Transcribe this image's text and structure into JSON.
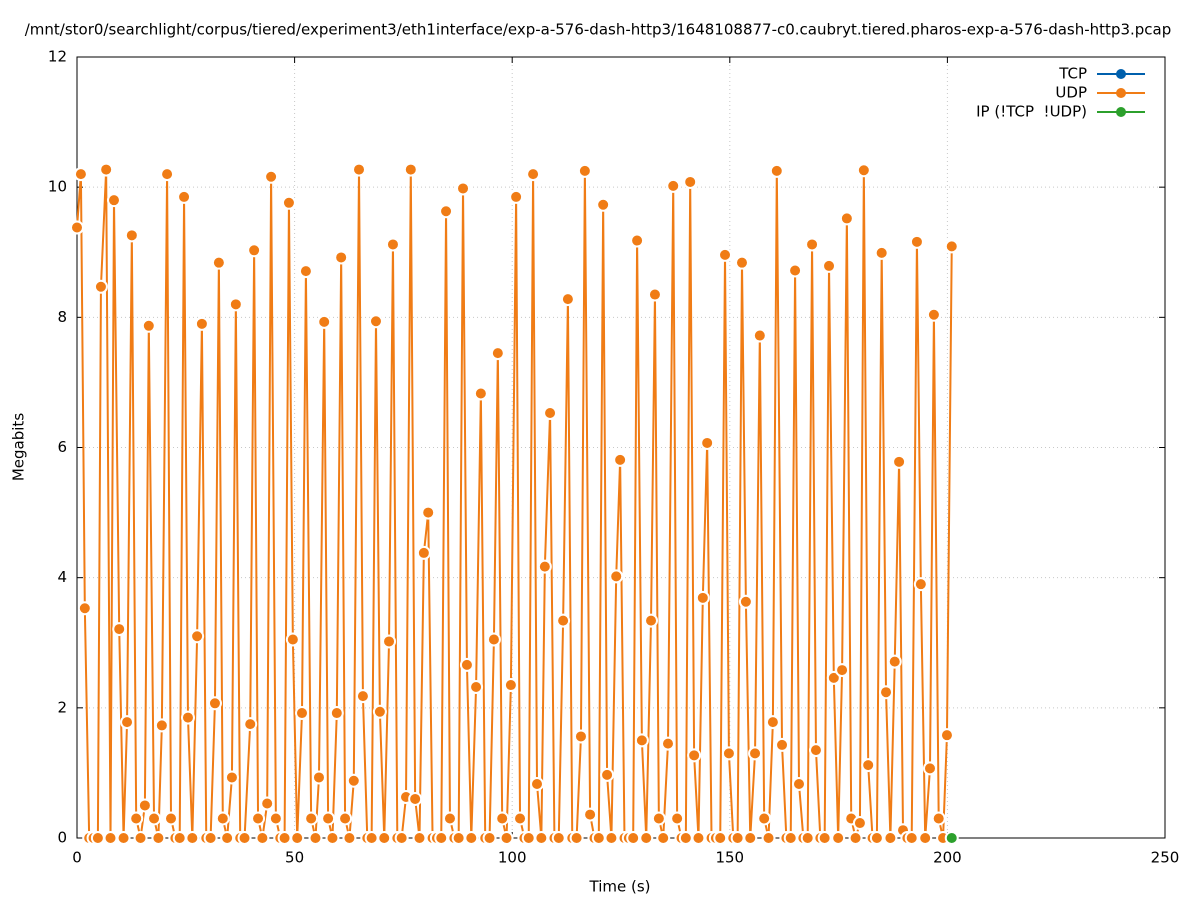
{
  "chart_data": {
    "type": "line",
    "title": "/mnt/stor0/searchlight/corpus/tiered/experiment3/eth1interface/exp-a-576-dash-http3/1648108877-c0.caubryt.tiered.pharos-exp-a-576-dash-http3.pcap",
    "x_label": "Time (s)",
    "y_label": "Megabits",
    "xlim": [
      0,
      250
    ],
    "xticks": [
      0,
      50,
      100,
      150,
      200,
      250
    ],
    "ylim": [
      0,
      12
    ],
    "yticks": [
      0,
      2,
      4,
      6,
      8,
      10,
      12
    ],
    "grid": true,
    "legend": "top-right",
    "series": [
      {
        "name": "TCP",
        "color": "#0060ad",
        "x": [],
        "values": []
      },
      {
        "name": "UDP",
        "color": "#f07c15",
        "x": [
          0,
          0.9,
          1.8,
          2.8,
          3.8,
          4.8,
          5.5,
          6.7,
          7.7,
          8.5,
          9.7,
          10.7,
          11.5,
          12.6,
          13.6,
          14.6,
          15.6,
          16.5,
          17.7,
          18.7,
          19.5,
          20.7,
          21.6,
          22.6,
          23.6,
          24.6,
          25.5,
          26.5,
          27.6,
          28.7,
          29.7,
          30.7,
          31.7,
          32.6,
          33.5,
          34.5,
          35.6,
          36.5,
          37.5,
          38.5,
          39.8,
          40.7,
          41.6,
          42.6,
          43.7,
          44.6,
          45.7,
          46.7,
          47.7,
          48.7,
          49.6,
          50.6,
          51.7,
          52.6,
          53.8,
          54.8,
          55.6,
          56.8,
          57.7,
          58.7,
          59.7,
          60.7,
          61.6,
          62.6,
          63.6,
          64.8,
          65.7,
          66.7,
          67.7,
          68.7,
          69.6,
          70.6,
          71.7,
          72.6,
          73.6,
          74.6,
          75.6,
          76.7,
          77.7,
          78.7,
          79.7,
          80.7,
          81.7,
          82.7,
          83.7,
          84.8,
          85.7,
          86.7,
          87.7,
          88.7,
          89.6,
          90.6,
          91.7,
          92.8,
          93.8,
          94.8,
          95.8,
          96.7,
          97.7,
          98.7,
          99.7,
          100.9,
          101.8,
          102.8,
          103.8,
          104.8,
          105.7,
          106.7,
          107.5,
          108.7,
          109.7,
          110.7,
          111.7,
          112.8,
          113.8,
          114.8,
          115.8,
          116.7,
          117.9,
          118.9,
          119.9,
          120.9,
          121.8,
          122.8,
          123.9,
          124.8,
          125.8,
          126.8,
          127.8,
          128.7,
          129.8,
          130.8,
          131.9,
          132.8,
          133.7,
          134.7,
          135.8,
          137,
          137.9,
          138.9,
          139.9,
          140.9,
          141.8,
          142.8,
          143.8,
          144.8,
          145.8,
          146.8,
          147.8,
          148.9,
          149.8,
          150.8,
          151.8,
          152.8,
          153.7,
          154.7,
          155.8,
          156.9,
          157.9,
          158.9,
          159.9,
          160.8,
          162,
          163,
          164,
          165,
          165.9,
          166.9,
          167.9,
          168.9,
          169.8,
          170.8,
          171.8,
          172.8,
          173.9,
          174.9,
          175.8,
          176.9,
          177.9,
          178.9,
          179.9,
          180.8,
          181.8,
          182.8,
          183.8,
          184.9,
          185.9,
          186.9,
          187.9,
          188.9,
          189.8,
          190.8,
          191.8,
          193,
          193.9,
          194.9,
          196,
          196.9,
          198,
          199,
          199.9,
          201
        ],
        "values": [
          9.38,
          10.2,
          3.53,
          0,
          0,
          0,
          8.47,
          10.27,
          0,
          9.8,
          3.21,
          0,
          1.78,
          9.26,
          0.3,
          0,
          0.5,
          7.87,
          0.3,
          0,
          1.73,
          10.2,
          0.3,
          0,
          0,
          9.85,
          1.85,
          0,
          3.1,
          7.9,
          0,
          0,
          2.07,
          8.84,
          0.3,
          0,
          0.93,
          8.2,
          0,
          0,
          1.75,
          9.03,
          0.3,
          0,
          0.53,
          10.16,
          0.3,
          0,
          0,
          9.76,
          3.05,
          0,
          1.92,
          8.71,
          0.3,
          0,
          0.93,
          7.93,
          0.3,
          0,
          1.92,
          8.92,
          0.3,
          0,
          0.88,
          10.27,
          2.18,
          0,
          0,
          7.94,
          1.94,
          0,
          3.02,
          9.12,
          0,
          0,
          0.63,
          10.27,
          0.6,
          0,
          4.38,
          5.0,
          0,
          0,
          0,
          9.63,
          0.3,
          0,
          0,
          9.98,
          2.66,
          0,
          2.32,
          6.83,
          0,
          0,
          3.05,
          7.45,
          0.3,
          0,
          2.35,
          9.85,
          0.3,
          0,
          0,
          10.2,
          0.83,
          0,
          4.17,
          6.53,
          0,
          0,
          3.34,
          8.28,
          0,
          0,
          1.56,
          10.25,
          0.36,
          0,
          0,
          9.73,
          0.97,
          0,
          4.02,
          5.81,
          0,
          0,
          0,
          9.18,
          1.5,
          0,
          3.34,
          8.35,
          0.3,
          0,
          1.45,
          10.02,
          0.3,
          0,
          0,
          10.08,
          1.27,
          0,
          3.69,
          6.07,
          0,
          0,
          0,
          8.96,
          1.3,
          0,
          0,
          8.84,
          3.63,
          0,
          1.3,
          7.72,
          0.3,
          0,
          1.78,
          10.25,
          1.43,
          0,
          0,
          8.72,
          0.83,
          0,
          0,
          9.12,
          1.35,
          0,
          0,
          8.79,
          2.46,
          0,
          2.58,
          9.52,
          0.3,
          0,
          0.23,
          10.26,
          1.12,
          0,
          0,
          8.99,
          2.24,
          0,
          2.71,
          5.78,
          0.12,
          0,
          0,
          9.16,
          3.9,
          0,
          1.07,
          8.04,
          0.3,
          0,
          1.58,
          9.09
        ]
      },
      {
        "name": "IP (!TCP  !UDP)",
        "color": "#2ca02c",
        "x": [
          201
        ],
        "values": [
          0
        ]
      }
    ]
  }
}
